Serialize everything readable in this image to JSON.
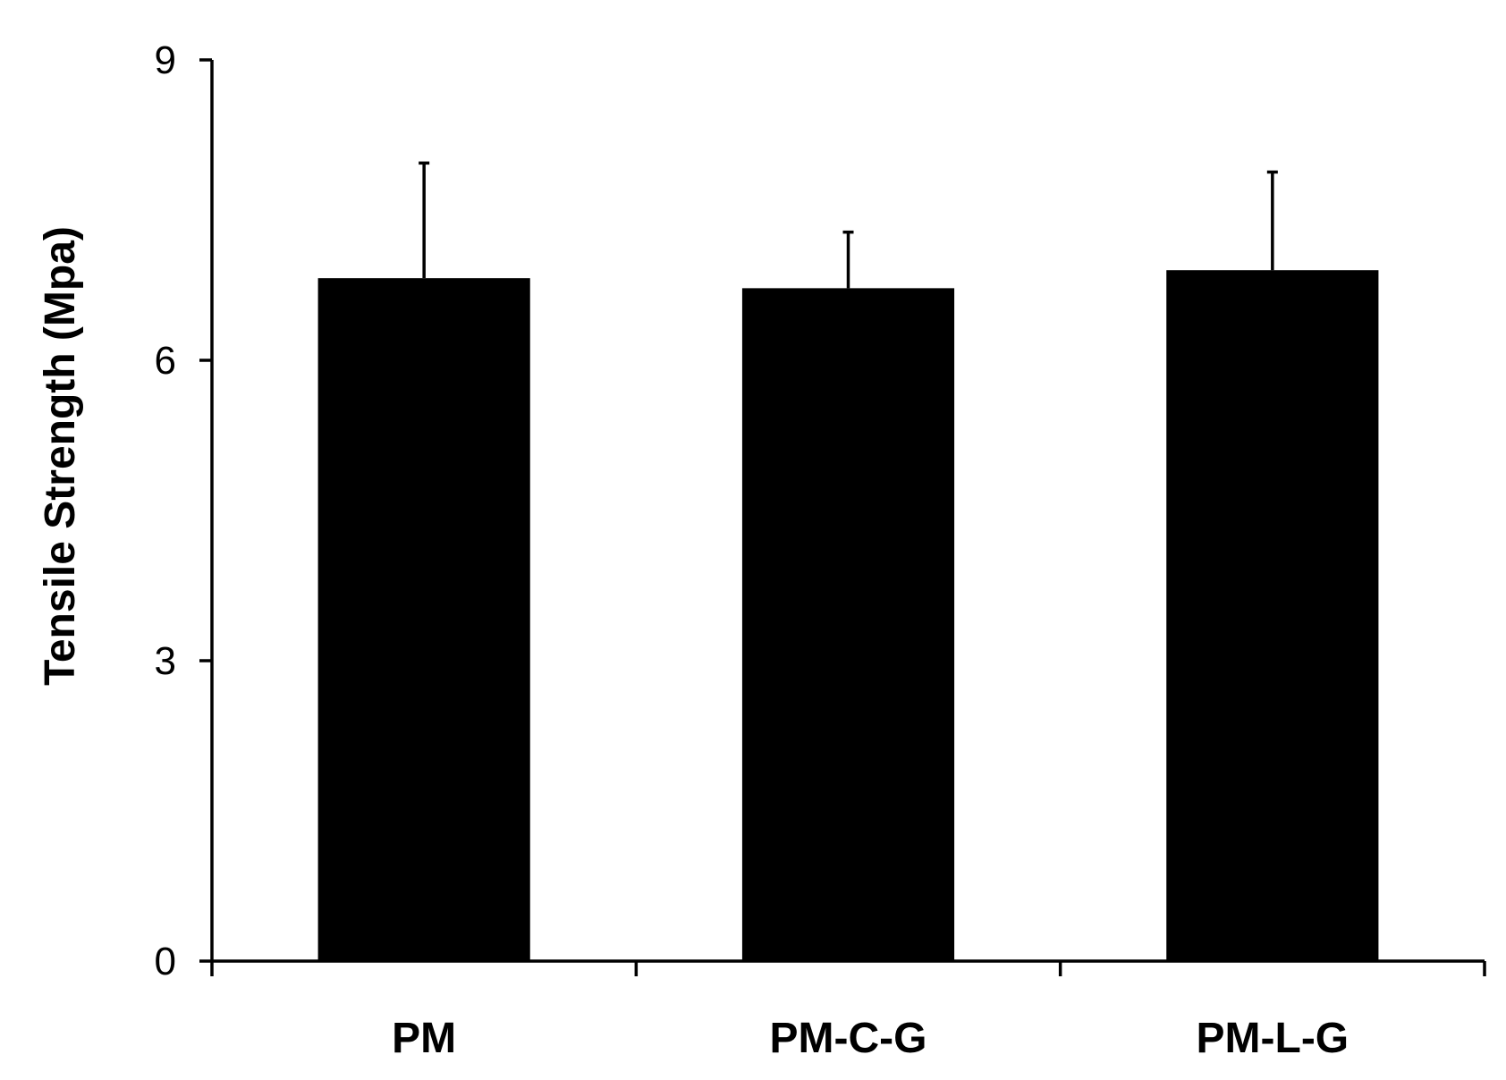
{
  "chart_data": {
    "type": "bar",
    "categories": [
      "PM",
      "PM-C-G",
      "PM-L-G"
    ],
    "series": [
      {
        "values": [
          6.82,
          6.72,
          6.9
        ],
        "error": [
          1.15,
          0.56,
          0.98
        ]
      }
    ],
    "title": "",
    "xlabel": "",
    "ylabel": "Tensile Strength (Mpa)",
    "ylim": [
      0,
      9
    ],
    "yticks": [
      0,
      3,
      6,
      9
    ],
    "ytick_labels": [
      "0",
      "3",
      "6",
      "9"
    ],
    "grid": false,
    "legend": "none",
    "colors": {
      "bar": "#000000",
      "axis": "#000000",
      "background": "#ffffff"
    }
  }
}
